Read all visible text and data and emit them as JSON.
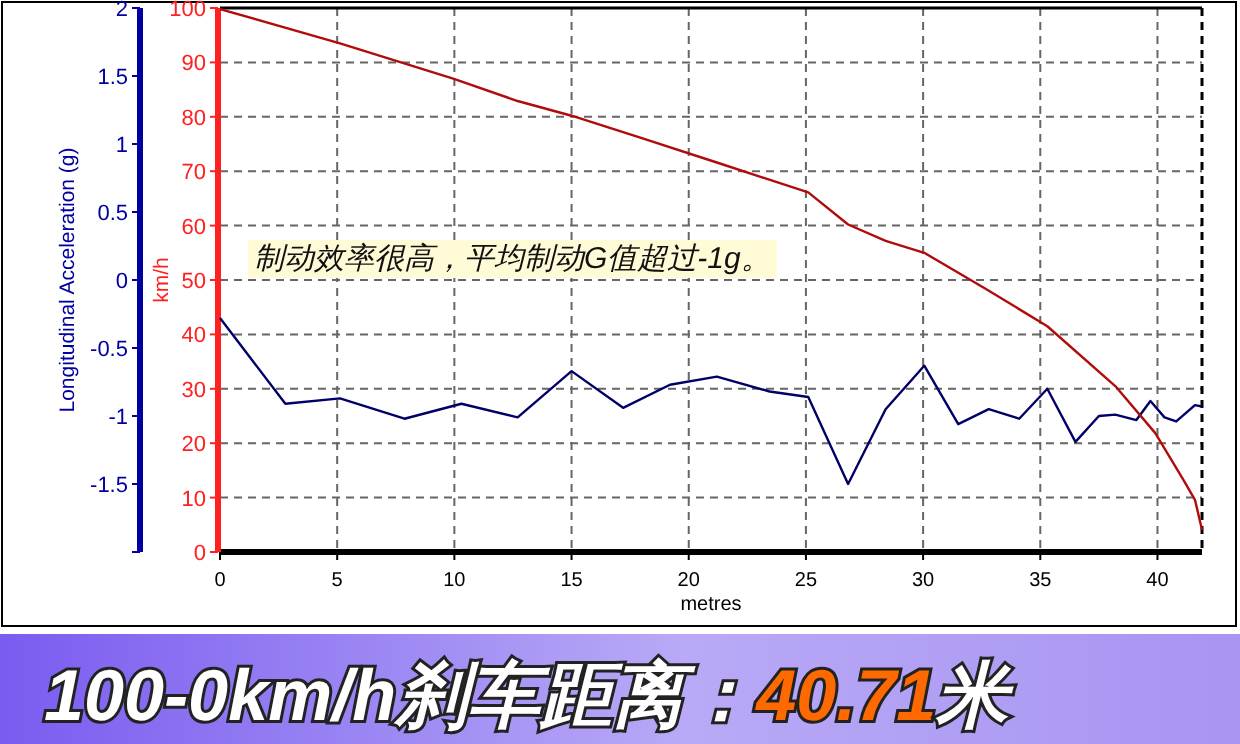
{
  "chart_data": {
    "type": "line",
    "xlabel": "metres",
    "ylabel": "Longitudinal Acceleration (g)",
    "y2label": "km/h",
    "x": [
      0,
      2.79,
      5.12,
      7.87,
      10.3,
      12.7,
      15.0,
      17.2,
      19.2,
      21.2,
      23.45,
      25.1,
      26.8,
      28.4,
      30.05,
      31.5,
      32.8,
      34.1,
      35.3,
      36.5,
      37.5,
      38.2,
      39.1,
      39.7,
      40.3,
      40.8,
      41.6,
      41.9
    ],
    "series": [
      {
        "color": "#000066",
        "axis": "y",
        "values": [
          -0.28,
          -0.91,
          -0.87,
          -1.02,
          -0.91,
          -1.01,
          -0.67,
          -0.94,
          -0.77,
          -0.71,
          -0.82,
          -0.86,
          -1.5,
          -0.95,
          -0.63,
          -1.06,
          -0.95,
          -1.02,
          -0.8,
          -1.19,
          -1.0,
          -0.99,
          -1.03,
          -0.89,
          -1.01,
          -1.04,
          -0.92,
          -0.93
        ]
      },
      {
        "color": "#b00c0c",
        "axis": "y2",
        "x": [
          0,
          5.12,
          9.95,
          12.7,
          15.0,
          17.9,
          21.2,
          25.1,
          26.8,
          28.4,
          30.05,
          32.7,
          35.3,
          38.2,
          39.9,
          41.1,
          41.6,
          41.9
        ],
        "values": [
          99.8,
          93.5,
          87,
          82.9,
          80.2,
          76.2,
          71.6,
          66.1,
          60.2,
          57.2,
          55.0,
          48.3,
          41.5,
          30.5,
          21.9,
          13.3,
          9.6,
          4.1
        ]
      }
    ],
    "xlim": [
      0,
      41.9
    ],
    "xticks": [
      0,
      5,
      10,
      15,
      20,
      25,
      30,
      35,
      40
    ],
    "ylim": [
      -2,
      2
    ],
    "yticks": [
      {
        "value": -2,
        "label": null
      },
      -1.5,
      -1,
      -0.5,
      0,
      0.5,
      1,
      1.5,
      2
    ],
    "y2lim": [
      0,
      100
    ],
    "y2ticks": [
      0,
      10,
      20,
      30,
      40,
      50,
      60,
      70,
      80,
      90,
      100
    ],
    "ref_lines": [
      {
        "axis": "x",
        "value": 41.9,
        "line_style": "dashed",
        "color": "#000000"
      }
    ],
    "grid": true,
    "annotations": [
      "制动效率很高，平均制动G值超过-1g。",
      "100-0km/h刹车距离：40.71米"
    ]
  }
}
